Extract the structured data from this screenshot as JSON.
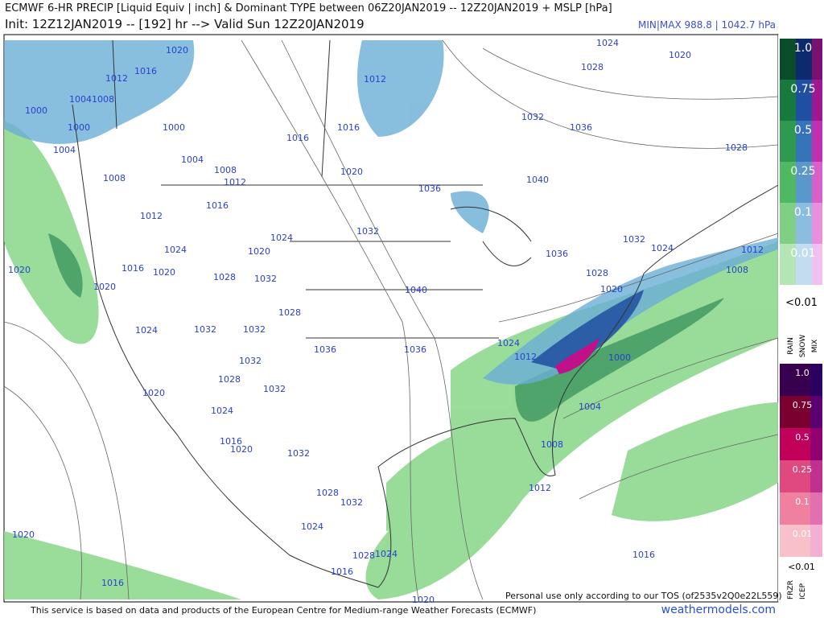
{
  "header": {
    "title": "ECMWF 6-HR PRECIP [Liquid Equiv | inch] & Dominant TYPE between 06Z20JAN2019 -- 12Z20JAN2019 + MSLP [hPa]",
    "subtitle": "Init: 12Z12JAN2019 -- [192] hr --> Valid Sun 12Z20JAN2019",
    "minmax": "MIN|MAX 988.8 | 1042.7 hPa"
  },
  "legend_rain": {
    "levels": [
      "1.0",
      "0.75",
      "0.5",
      "0.25",
      "0.1",
      "0.01"
    ],
    "below": "<0.01",
    "types": [
      "RAIN",
      "SNOW",
      "MIX"
    ]
  },
  "legend_ice": {
    "levels": [
      "1.0",
      "0.75",
      "0.5",
      "0.25",
      "0.1",
      "0.01"
    ],
    "below": "<0.01",
    "types": [
      "FRZR",
      "ICEP"
    ]
  },
  "isobar_labels": [
    1020,
    1016,
    1012,
    1004,
    1008,
    1000,
    1000,
    1000,
    1004,
    1004,
    1008,
    1008,
    1012,
    1012,
    1016,
    1016,
    1016,
    1012,
    1020,
    1024,
    1024,
    1020,
    1020,
    1016,
    1020,
    1020,
    1028,
    1032,
    1032,
    1036,
    1040,
    1028,
    1024,
    1032,
    1032,
    1036,
    1036,
    1032,
    1028,
    1032,
    1020,
    1024,
    1016,
    1020,
    1032,
    1028,
    1032,
    1024,
    1020,
    1016,
    1016,
    1028,
    1024,
    1020,
    1024,
    1012,
    1004,
    1008,
    1012,
    1016,
    1000,
    1020,
    1028,
    1036,
    1032,
    1024,
    1012,
    1008,
    1028,
    1040,
    1032,
    1036,
    1028,
    1024,
    1020
  ],
  "footer": {
    "credit": "This service is based on data and products of the European Centre for Medium-range Weather Forecasts (ECMWF)",
    "site": "weathermodels.com",
    "tos": "Personal use only according to our TOS (of2535v2Q0e22L559)"
  }
}
